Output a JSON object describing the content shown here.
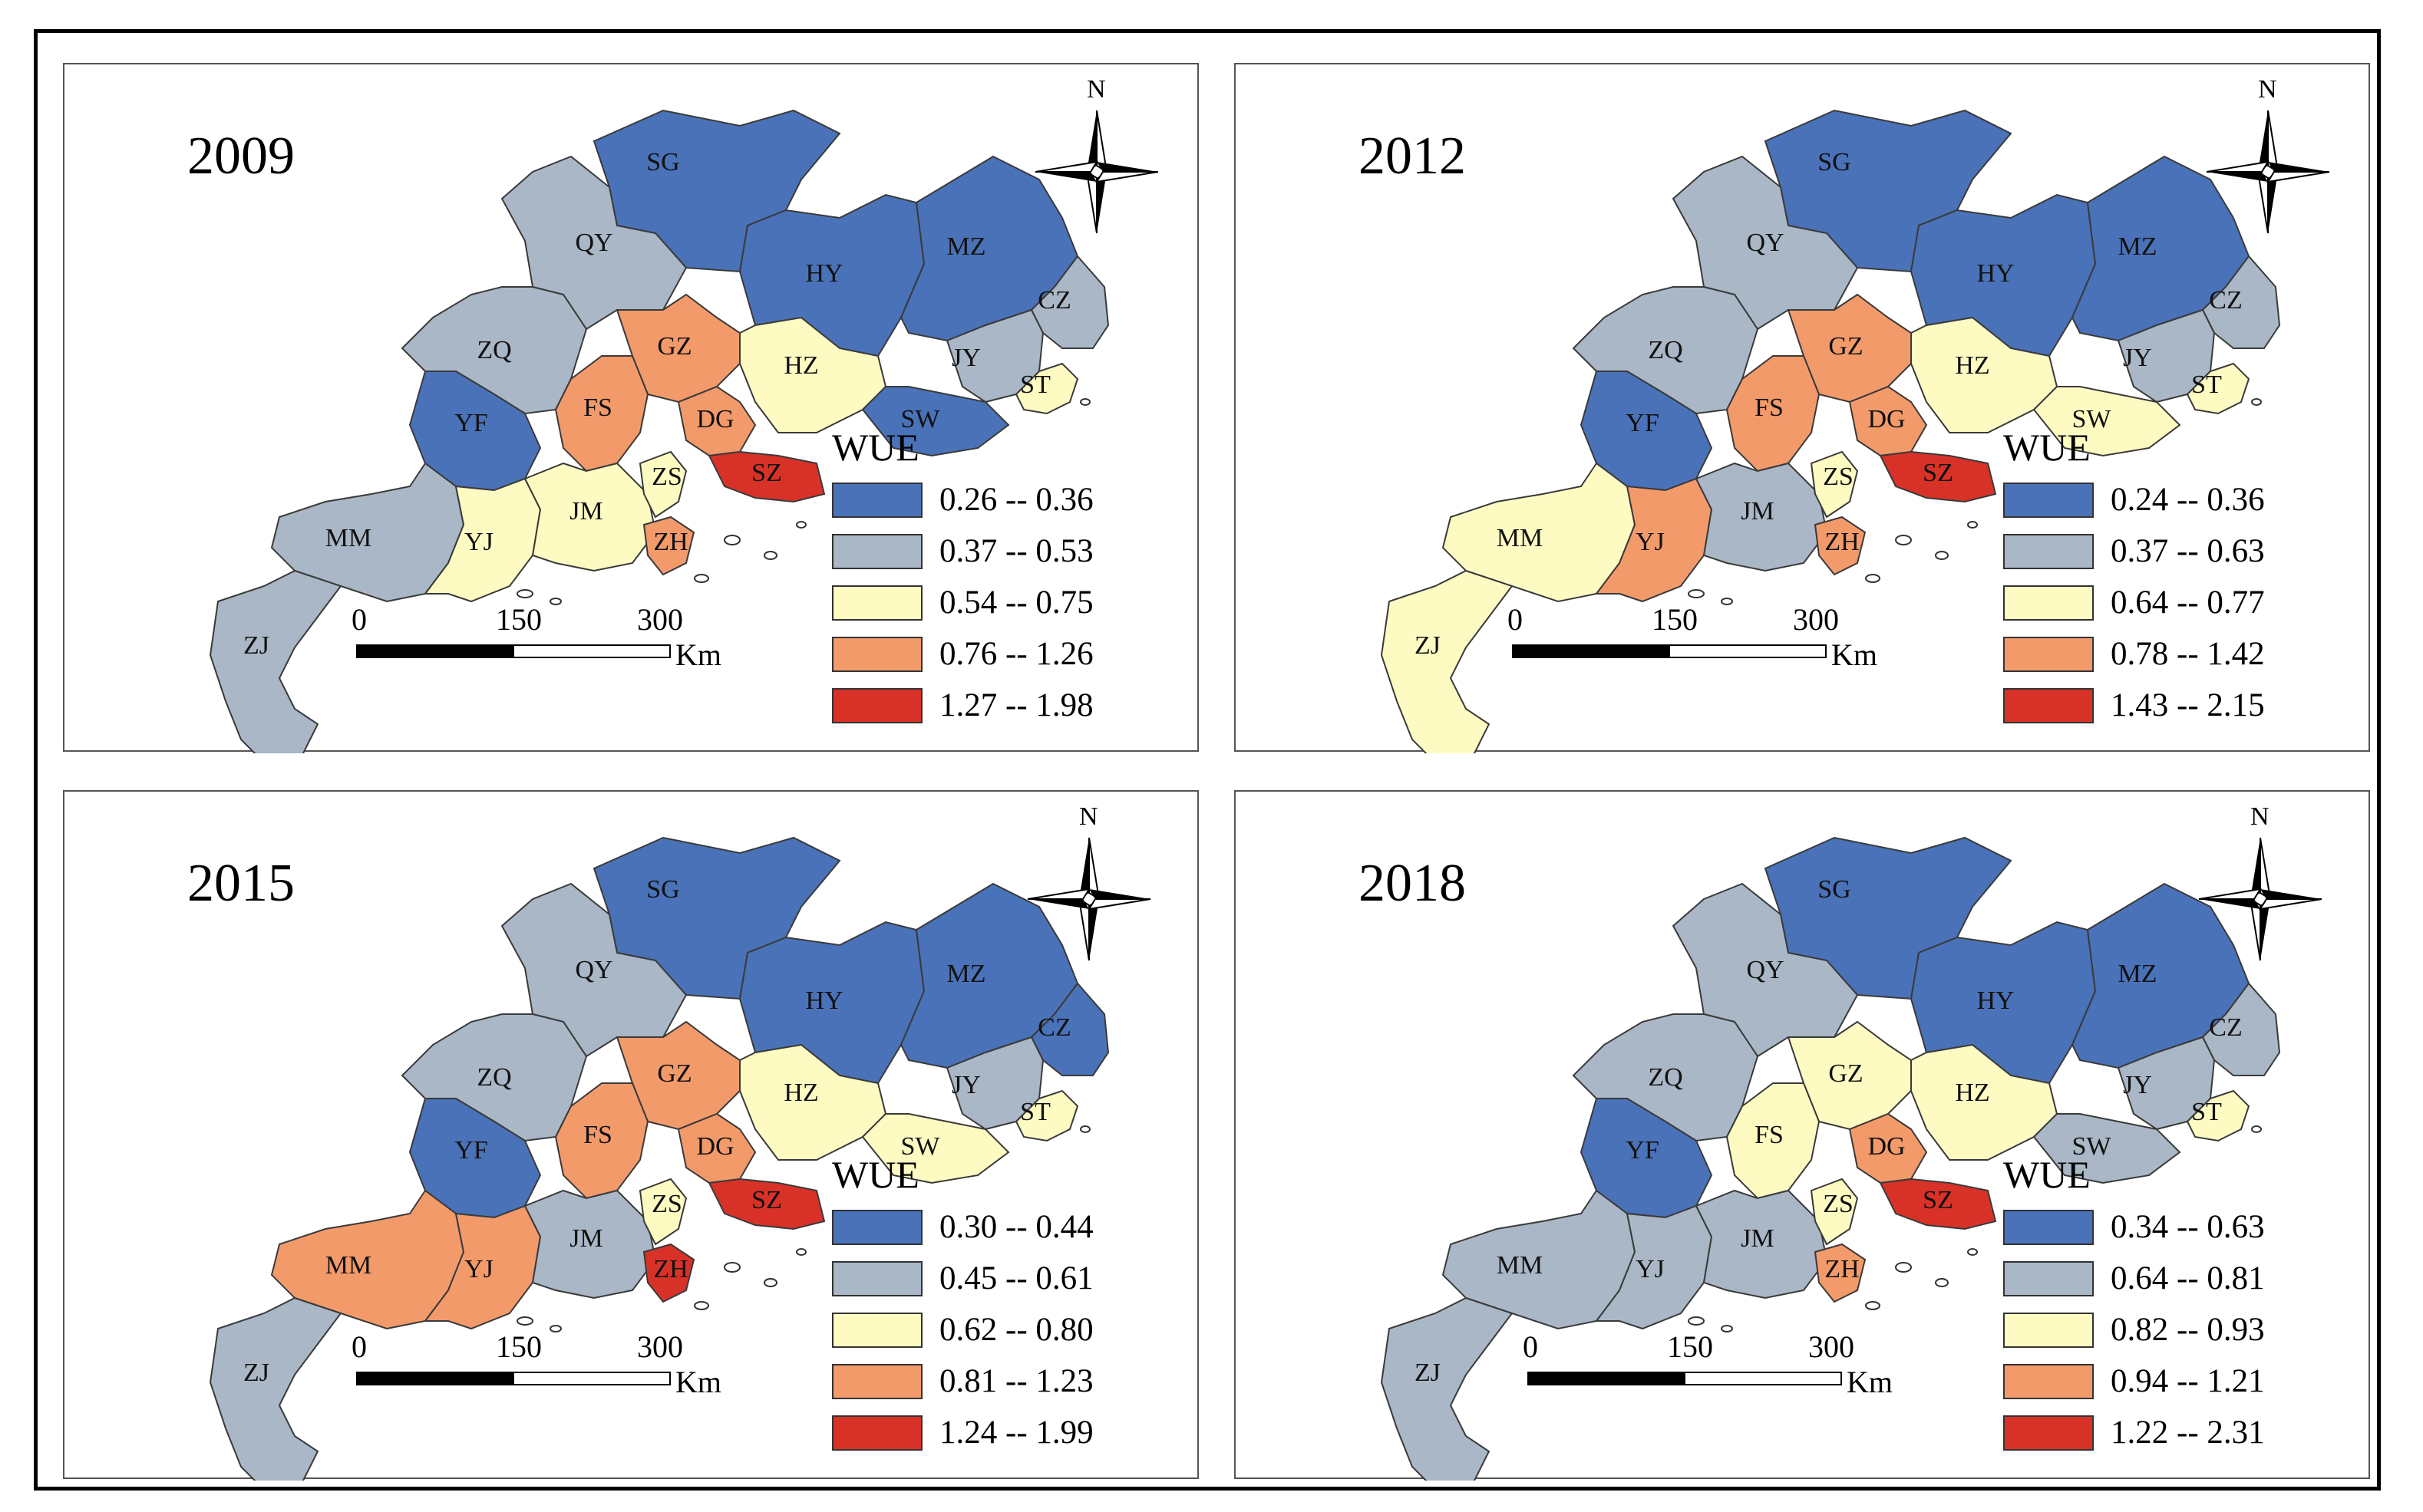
{
  "legend_title": "WUE",
  "scale": {
    "tick_0": "0",
    "tick_150": "150",
    "tick_300": "300",
    "unit": "Km"
  },
  "compass_label": "N",
  "palette": [
    "#4a72b8",
    "#a9b7c6",
    "#fdfbc2",
    "#f39a6b",
    "#d83228"
  ],
  "city_codes": [
    "SG",
    "QY",
    "HY",
    "MZ",
    "CZ",
    "ZQ",
    "GZ",
    "HZ",
    "JY",
    "ST",
    "YF",
    "FS",
    "DG",
    "SW",
    "SZ",
    "MM",
    "YJ",
    "JM",
    "ZS",
    "ZH",
    "ZJ"
  ],
  "panels": [
    {
      "year": "2009",
      "legend": [
        "0.26 -- 0.36",
        "0.37 -- 0.53",
        "0.54 -- 0.75",
        "0.76 -- 1.26",
        "1.27 -- 1.98"
      ],
      "classes": {
        "SG": 0,
        "HY": 0,
        "MZ": 0,
        "YF": 0,
        "SW": 0,
        "QY": 1,
        "ZQ": 1,
        "CZ": 1,
        "JY": 1,
        "MM": 1,
        "ZJ": 1,
        "HZ": 2,
        "ST": 2,
        "YJ": 2,
        "JM": 2,
        "ZS": 2,
        "GZ": 3,
        "FS": 3,
        "DG": 3,
        "ZH": 3,
        "SZ": 4
      }
    },
    {
      "year": "2012",
      "legend": [
        "0.24 -- 0.36",
        "0.37 -- 0.63",
        "0.64 -- 0.77",
        "0.78 -- 1.42",
        "1.43 -- 2.15"
      ],
      "classes": {
        "SG": 0,
        "HY": 0,
        "MZ": 0,
        "YF": 0,
        "QY": 1,
        "ZQ": 1,
        "CZ": 1,
        "JY": 1,
        "JM": 1,
        "HZ": 2,
        "SW": 2,
        "ST": 2,
        "MM": 2,
        "ZJ": 2,
        "ZS": 2,
        "GZ": 3,
        "FS": 3,
        "DG": 3,
        "YJ": 3,
        "ZH": 3,
        "SZ": 4
      }
    },
    {
      "year": "2015",
      "legend": [
        "0.30 -- 0.44",
        "0.45 -- 0.61",
        "0.62 -- 0.80",
        "0.81 -- 1.23",
        "1.24 -- 1.99"
      ],
      "classes": {
        "SG": 0,
        "HY": 0,
        "MZ": 0,
        "YF": 0,
        "CZ": 0,
        "QY": 1,
        "ZQ": 1,
        "JY": 1,
        "JM": 1,
        "ZJ": 1,
        "HZ": 2,
        "SW": 2,
        "ST": 2,
        "ZS": 2,
        "GZ": 3,
        "FS": 3,
        "DG": 3,
        "MM": 3,
        "YJ": 3,
        "SZ": 4,
        "ZH": 4
      }
    },
    {
      "year": "2018",
      "legend": [
        "0.34 -- 0.63",
        "0.64 -- 0.81",
        "0.82 -- 0.93",
        "0.94 -- 1.21",
        "1.22 -- 2.31"
      ],
      "classes": {
        "SG": 0,
        "HY": 0,
        "MZ": 0,
        "YF": 0,
        "QY": 1,
        "ZQ": 1,
        "CZ": 1,
        "JY": 1,
        "SW": 1,
        "MM": 1,
        "YJ": 1,
        "JM": 1,
        "ZJ": 1,
        "GZ": 2,
        "FS": 2,
        "HZ": 2,
        "ST": 2,
        "ZS": 2,
        "DG": 3,
        "ZH": 3,
        "SZ": 4
      }
    }
  ]
}
